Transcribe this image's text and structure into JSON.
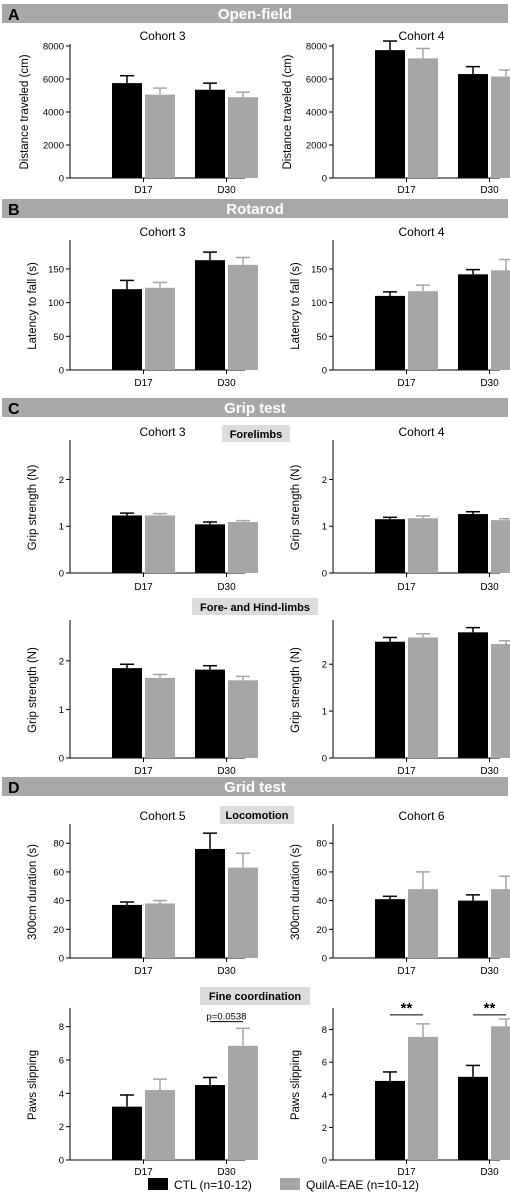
{
  "colors": {
    "ctl": "#000000",
    "quila": "#a6a6a6",
    "banner": "#a8a8a8",
    "banner_text": "#ffffff",
    "subhead_bg": "#dcdcdc",
    "axis": "#000000"
  },
  "sections": [
    {
      "letter": "A",
      "title": "Open-field"
    },
    {
      "letter": "B",
      "title": "Rotarod"
    },
    {
      "letter": "C",
      "title": "Grip test"
    },
    {
      "letter": "D",
      "title": "Grid test"
    }
  ],
  "subheads": [
    "Forelimbs",
    "Fore- and Hind-limbs",
    "Locomotion",
    "Fine coordination"
  ],
  "legend": [
    {
      "label": "CTL (n=10-12)",
      "color": "#000000"
    },
    {
      "label": "QuilA-EAE (n=10-12)",
      "color": "#a6a6a6"
    }
  ],
  "chart_data": [
    {
      "type": "bar",
      "title": "Cohort 3",
      "ylabel": "Distance traveled (cm)",
      "ylim": [
        0,
        8000
      ],
      "yticks": [
        0,
        2000,
        4000,
        6000,
        8000
      ],
      "categories": [
        "D17",
        "D30"
      ],
      "series": [
        {
          "name": "CTL (n=10-12)",
          "values": [
            5750,
            5350
          ],
          "errors": [
            450,
            400
          ]
        },
        {
          "name": "QuilA-EAE (n=10-12)",
          "values": [
            5050,
            4900
          ],
          "errors": [
            400,
            300
          ]
        }
      ],
      "annotations": []
    },
    {
      "type": "bar",
      "title": "Cohort 4",
      "ylabel": "Distance traveled (cm)",
      "ylim": [
        0,
        8000
      ],
      "yticks": [
        0,
        2000,
        4000,
        6000,
        8000
      ],
      "categories": [
        "D17",
        "D30"
      ],
      "series": [
        {
          "name": "CTL (n=10-12)",
          "values": [
            7750,
            6300
          ],
          "errors": [
            550,
            450
          ]
        },
        {
          "name": "QuilA-EAE (n=10-12)",
          "values": [
            7250,
            6150
          ],
          "errors": [
            600,
            400
          ]
        }
      ],
      "annotations": []
    },
    {
      "type": "bar",
      "title": "Cohort 3",
      "ylabel": "Latency to fall (s)",
      "ylim": [
        0,
        190
      ],
      "yticks": [
        0,
        50,
        100,
        150
      ],
      "categories": [
        "D17",
        "D30"
      ],
      "series": [
        {
          "name": "CTL (n=10-12)",
          "values": [
            120,
            163
          ],
          "errors": [
            13,
            12
          ]
        },
        {
          "name": "QuilA-EAE (n=10-12)",
          "values": [
            122,
            156
          ],
          "errors": [
            8,
            11
          ]
        }
      ],
      "annotations": []
    },
    {
      "type": "bar",
      "title": "Cohort 4",
      "ylabel": "Latency to fall (s)",
      "ylim": [
        0,
        190
      ],
      "yticks": [
        0,
        50,
        100,
        150
      ],
      "categories": [
        "D17",
        "D30"
      ],
      "series": [
        {
          "name": "CTL (n=10-12)",
          "values": [
            110,
            142
          ],
          "errors": [
            6,
            7
          ]
        },
        {
          "name": "QuilA-EAE (n=10-12)",
          "values": [
            117,
            148
          ],
          "errors": [
            9,
            16
          ]
        }
      ],
      "annotations": []
    },
    {
      "type": "bar",
      "title": "Cohort 3",
      "ylabel": "Grip strength (N)",
      "ylim": [
        0,
        2.8
      ],
      "yticks": [
        0,
        1,
        2
      ],
      "categories": [
        "D17",
        "D30"
      ],
      "series": [
        {
          "name": "CTL (n=10-12)",
          "values": [
            1.23,
            1.04
          ],
          "errors": [
            0.05,
            0.05
          ]
        },
        {
          "name": "QuilA-EAE (n=10-12)",
          "values": [
            1.23,
            1.09
          ],
          "errors": [
            0.04,
            0.03
          ]
        }
      ],
      "annotations": []
    },
    {
      "type": "bar",
      "title": "Cohort 4",
      "ylabel": "Grip strength (N)",
      "ylim": [
        0,
        2.8
      ],
      "yticks": [
        0,
        1,
        2
      ],
      "categories": [
        "D17",
        "D30"
      ],
      "series": [
        {
          "name": "CTL (n=10-12)",
          "values": [
            1.15,
            1.26
          ],
          "errors": [
            0.04,
            0.05
          ]
        },
        {
          "name": "QuilA-EAE (n=10-12)",
          "values": [
            1.17,
            1.13
          ],
          "errors": [
            0.05,
            0.03
          ]
        }
      ],
      "annotations": []
    },
    {
      "type": "bar",
      "title": "",
      "ylabel": "Grip strength (N)",
      "ylim": [
        0,
        2.8
      ],
      "yticks": [
        0,
        1,
        2
      ],
      "categories": [
        "D17",
        "D30"
      ],
      "series": [
        {
          "name": "CTL (n=10-12)",
          "values": [
            1.85,
            1.82
          ],
          "errors": [
            0.08,
            0.08
          ]
        },
        {
          "name": "QuilA-EAE (n=10-12)",
          "values": [
            1.65,
            1.6
          ],
          "errors": [
            0.07,
            0.08
          ]
        }
      ],
      "annotations": []
    },
    {
      "type": "bar",
      "title": "",
      "ylabel": "Grip strength (N)",
      "ylim": [
        0,
        2.9
      ],
      "yticks": [
        0,
        1,
        2
      ],
      "categories": [
        "D17",
        "D30"
      ],
      "series": [
        {
          "name": "CTL (n=10-12)",
          "values": [
            2.48,
            2.68
          ],
          "errors": [
            0.09,
            0.1
          ]
        },
        {
          "name": "QuilA-EAE (n=10-12)",
          "values": [
            2.57,
            2.43
          ],
          "errors": [
            0.08,
            0.07
          ]
        }
      ],
      "annotations": []
    },
    {
      "type": "bar",
      "title": "Cohort 5",
      "ylabel": "300cm duration (s)",
      "ylim": [
        0,
        92
      ],
      "yticks": [
        0,
        20,
        40,
        60,
        80
      ],
      "categories": [
        "D17",
        "D30"
      ],
      "series": [
        {
          "name": "CTL (n=10-12)",
          "values": [
            37,
            76
          ],
          "errors": [
            2,
            11
          ]
        },
        {
          "name": "QuilA-EAE (n=10-12)",
          "values": [
            38,
            63
          ],
          "errors": [
            2,
            10
          ]
        }
      ],
      "annotations": []
    },
    {
      "type": "bar",
      "title": "Cohort 6",
      "ylabel": "300cm duration (s)",
      "ylim": [
        0,
        92
      ],
      "yticks": [
        0,
        20,
        40,
        60,
        80
      ],
      "categories": [
        "D17",
        "D30"
      ],
      "series": [
        {
          "name": "CTL (n=10-12)",
          "values": [
            41,
            40
          ],
          "errors": [
            2,
            4
          ]
        },
        {
          "name": "QuilA-EAE (n=10-12)",
          "values": [
            48,
            48
          ],
          "errors": [
            12,
            9
          ]
        }
      ],
      "annotations": []
    },
    {
      "type": "bar",
      "title": "",
      "ylabel": "Paws slipping",
      "ylim": [
        0,
        9
      ],
      "yticks": [
        0,
        2,
        4,
        6,
        8
      ],
      "categories": [
        "D17",
        "D30"
      ],
      "series": [
        {
          "name": "CTL (n=10-12)",
          "values": [
            3.2,
            4.5
          ],
          "errors": [
            0.7,
            0.45
          ]
        },
        {
          "name": "QuilA-EAE (n=10-12)",
          "values": [
            4.2,
            6.85
          ],
          "errors": [
            0.65,
            1.05
          ]
        }
      ],
      "annotations": [
        {
          "text": "p=0.0538",
          "category": 1,
          "y": 8.3
        }
      ]
    },
    {
      "type": "bar",
      "title": "",
      "ylabel": "Paws slipping",
      "ylim": [
        0,
        9.2
      ],
      "yticks": [
        0,
        2,
        4,
        6,
        8
      ],
      "categories": [
        "D17",
        "D30"
      ],
      "series": [
        {
          "name": "CTL (n=10-12)",
          "values": [
            4.85,
            5.1
          ],
          "errors": [
            0.55,
            0.7
          ]
        },
        {
          "name": "QuilA-EAE (n=10-12)",
          "values": [
            7.55,
            8.2
          ],
          "errors": [
            0.8,
            0.45
          ]
        }
      ],
      "annotations": [
        {
          "text": "**",
          "category": 0,
          "y": 8.9
        },
        {
          "text": "**",
          "category": 1,
          "y": 8.9
        }
      ]
    }
  ]
}
